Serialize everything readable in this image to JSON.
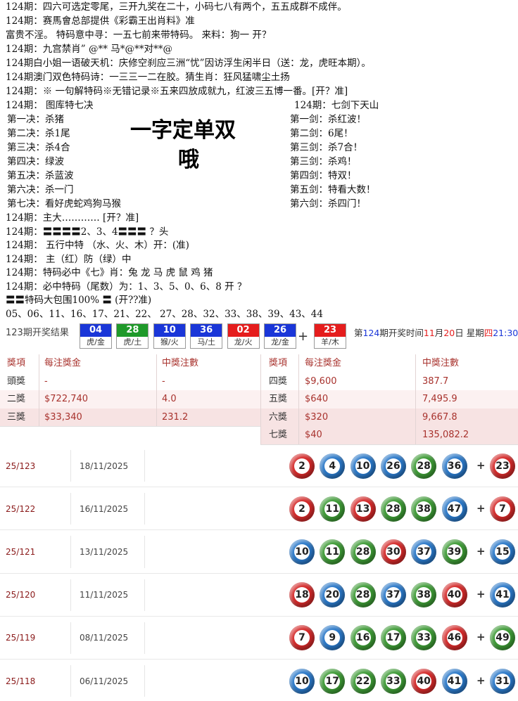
{
  "header_lines": [
    "124期：四六可选定零尾，三开九奖在二十，小码七八有两个，五五成群不成伴。",
    "124期：赛馬會总部提供《彩霸王出肖料》准",
    "富贵不淫。 特码意中寻：一五七前来带特码。 来料：狗一  开？",
    "124期：九宫禁肖” @** 马*@**对**@",
    "124期白小姐一语破天机：庆修空刹应三洲“忧”因访浮生闲半日（送：龙，虎旺本期）。",
    "124期澳门双色特码诗：一三三一二在胶。猜生肖：狂风猛啸尘土扬",
    "124期：※ 一句解特码※无错记录※五来四放成就九，红波三五博一番。[开？准]"
  ],
  "tips": {
    "left_title": "124期：      图库特七决",
    "right_title": "124期：七剑下天山",
    "left": [
      "第一决：杀猪",
      "第二决：杀1尾",
      "第三决：杀4合",
      "第四决：绿波",
      "第五决：杀蓝波",
      "第六决：杀一门",
      "第七决：看好虎蛇鸡狗马猴"
    ],
    "right": [
      "第一剑：杀红波！",
      "第二剑：6尾！",
      "第三剑：杀7合！",
      "第三剑：杀鸡！",
      "第四剑：特双！",
      "第五剑：特看大数！",
      "第六剑：杀四门！"
    ],
    "big_text": "一字定单双",
    "big_text_2": "哦"
  },
  "bottom_lines": [
    "124期：主大………… [开？准]",
    "124期：〓〓〓〓2、3、4〓〓〓 ？头",
    "124期： 五行中特  （水、火、木）开：(准)",
    "124期： 主（红）防（绿）中",
    "124期：特码必中《七》肖：兔 龙 马 虎 鼠 鸡   猪",
    "124期：必中特码（尾数）为：1、3、5、0、6、8      开 ？",
    "〓〓特码大包围100% 〓    (开??准)",
    "05、06、11、16、17、21、22、 27、28、32、33、38、39、43、44"
  ],
  "result_bar": {
    "title": "123期开奖结果",
    "balls": [
      {
        "number": "04",
        "zodiac": "虎/金",
        "color": "#1a36d8"
      },
      {
        "number": "28",
        "zodiac": "虎/土",
        "color": "#1f9a2a"
      },
      {
        "number": "10",
        "zodiac": "猴/火",
        "color": "#1a36d8"
      },
      {
        "number": "36",
        "zodiac": "马/土",
        "color": "#1a36d8"
      },
      {
        "number": "02",
        "zodiac": "龙/火",
        "color": "#e51d1d"
      },
      {
        "number": "26",
        "zodiac": "龙/金",
        "color": "#1a36d8"
      }
    ],
    "plus": "+",
    "special": {
      "number": "23",
      "zodiac": "羊/木",
      "color": "#e51d1d"
    },
    "next_draw": [
      {
        "text": "第",
        "color": "#333"
      },
      {
        "text": "124",
        "color": "#1a36d8"
      },
      {
        "text": "期开奖时间",
        "color": "#333"
      },
      {
        "text": "11",
        "color": "#e51d1d"
      },
      {
        "text": "月",
        "color": "#333"
      },
      {
        "text": "20",
        "color": "#e51d1d"
      },
      {
        "text": "日  星期",
        "color": "#333"
      },
      {
        "text": "四",
        "color": "#e51d1d"
      },
      {
        "text": "21:30",
        "color": "#1a36d8"
      }
    ]
  },
  "prize_table": {
    "headers": [
      "獎項",
      "每注獎金",
      "中獎注數",
      "獎項",
      "每注獎金",
      "中獎注數"
    ],
    "left": [
      [
        "頭獎",
        "-",
        "-"
      ],
      [
        "二獎",
        "$722,740",
        "4.0"
      ],
      [
        "三獎",
        "$33,340",
        "231.2"
      ]
    ],
    "right": [
      [
        "四獎",
        "$9,600",
        "387.7"
      ],
      [
        "五獎",
        "$640",
        "7,495.9"
      ],
      [
        "六獎",
        "$320",
        "9,667.8"
      ],
      [
        "七獎",
        "$40",
        "135,082.2"
      ]
    ]
  },
  "draws": {
    "plus": "+",
    "rows": [
      {
        "id": "25/123",
        "date": "18/11/2025",
        "numbers": [
          2,
          4,
          10,
          26,
          28,
          36
        ],
        "colors": [
          "#d42a2a",
          "#2a78c8",
          "#2a78c8",
          "#2a78c8",
          "#3d9a35",
          "#2a78c8"
        ],
        "special": 23,
        "special_color": "#d42a2a"
      },
      {
        "id": "25/122",
        "date": "16/11/2025",
        "numbers": [
          2,
          11,
          13,
          28,
          38,
          47
        ],
        "colors": [
          "#d42a2a",
          "#3d9a35",
          "#d42a2a",
          "#3d9a35",
          "#3d9a35",
          "#2a78c8"
        ],
        "special": 7,
        "special_color": "#d42a2a"
      },
      {
        "id": "25/121",
        "date": "13/11/2025",
        "numbers": [
          10,
          11,
          28,
          30,
          37,
          39
        ],
        "colors": [
          "#2a78c8",
          "#3d9a35",
          "#3d9a35",
          "#d42a2a",
          "#2a78c8",
          "#3d9a35"
        ],
        "special": 15,
        "special_color": "#2a78c8"
      },
      {
        "id": "25/120",
        "date": "11/11/2025",
        "numbers": [
          18,
          20,
          28,
          37,
          38,
          40
        ],
        "colors": [
          "#d42a2a",
          "#2a78c8",
          "#3d9a35",
          "#2a78c8",
          "#3d9a35",
          "#d42a2a"
        ],
        "special": 41,
        "special_color": "#2a78c8"
      },
      {
        "id": "25/119",
        "date": "08/11/2025",
        "numbers": [
          7,
          9,
          16,
          17,
          33,
          46
        ],
        "colors": [
          "#d42a2a",
          "#2a78c8",
          "#3d9a35",
          "#3d9a35",
          "#3d9a35",
          "#d42a2a"
        ],
        "special": 49,
        "special_color": "#3d9a35"
      },
      {
        "id": "25/118",
        "date": "06/11/2025",
        "numbers": [
          10,
          17,
          22,
          33,
          40,
          41
        ],
        "colors": [
          "#2a78c8",
          "#3d9a35",
          "#3d9a35",
          "#3d9a35",
          "#d42a2a",
          "#2a78c8"
        ],
        "special": 31,
        "special_color": "#2a78c8"
      }
    ]
  }
}
